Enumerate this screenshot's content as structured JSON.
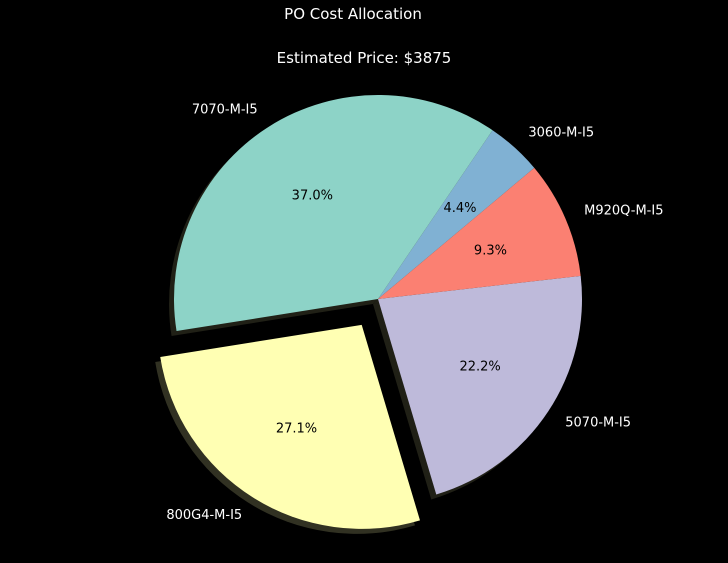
{
  "chart_data": {
    "type": "pie",
    "title": "PO Cost Allocation",
    "subtitle": "Estimated Price: $3875",
    "start_angle_deg": 40,
    "direction": "counterclockwise",
    "shadow": true,
    "slices": [
      {
        "label": "3060-M-I5",
        "percent": 4.4,
        "pct_label": "4.4%",
        "color": "#80b1d3",
        "explode": 0
      },
      {
        "label": "7070-M-I5",
        "percent": 37.0,
        "pct_label": "37.0%",
        "color": "#8dd3c7",
        "explode": 0
      },
      {
        "label": "800G4-M-I5",
        "percent": 27.1,
        "pct_label": "27.1%",
        "color": "#ffffb3",
        "explode": 0.15
      },
      {
        "label": "5070-M-I5",
        "percent": 22.2,
        "pct_label": "22.2%",
        "color": "#bebada",
        "explode": 0
      },
      {
        "label": "M920Q-M-I5",
        "percent": 9.3,
        "pct_label": "9.3%",
        "color": "#fb8072",
        "explode": 0
      }
    ]
  },
  "colors": {
    "background": "#000000",
    "text": "#ffffff",
    "pct_text": "#000000"
  }
}
